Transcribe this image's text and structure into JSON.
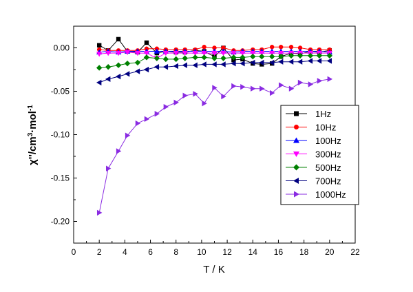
{
  "chart_data": {
    "type": "line",
    "title": "",
    "xlabel": "T / K",
    "ylabel_parts": [
      "χ''/cm",
      "3",
      "·mol",
      "-1"
    ],
    "xlim": [
      0,
      22
    ],
    "ylim": [
      -0.225,
      0.025
    ],
    "xticks": [
      0,
      2,
      4,
      6,
      8,
      10,
      12,
      14,
      16,
      18,
      20,
      22
    ],
    "yticks": [
      0.0,
      -0.05,
      -0.1,
      -0.15,
      -0.2
    ],
    "ytick_labels": [
      "0.00",
      "-0.05",
      "-0.10",
      "-0.15",
      "-0.20"
    ],
    "grid": false,
    "legend_position": "right",
    "x": [
      2.0,
      2.7,
      3.5,
      4.2,
      5.0,
      5.7,
      6.5,
      7.2,
      8.0,
      8.7,
      9.5,
      10.2,
      11.0,
      11.7,
      12.5,
      13.2,
      14.0,
      14.7,
      15.5,
      16.2,
      17.0,
      17.7,
      18.5,
      19.2,
      20.0
    ],
    "series": [
      {
        "name": "1Hz",
        "color": "#000000",
        "marker": "square",
        "values": [
          0.003,
          -0.003,
          0.01,
          -0.004,
          -0.005,
          0.006,
          -0.006,
          -0.004,
          -0.005,
          -0.005,
          -0.003,
          -0.004,
          -0.01,
          0.0,
          -0.014,
          -0.013,
          -0.018,
          -0.019,
          -0.018,
          -0.01,
          -0.006,
          -0.007,
          -0.004,
          -0.005,
          -0.003
        ]
      },
      {
        "name": "10Hz",
        "color": "#ff0000",
        "marker": "circle",
        "values": [
          -0.002,
          -0.003,
          -0.003,
          -0.003,
          -0.003,
          -0.001,
          -0.001,
          -0.002,
          -0.002,
          -0.002,
          -0.002,
          0.001,
          0.0,
          0.0,
          -0.003,
          -0.003,
          -0.002,
          -0.002,
          0.001,
          0.001,
          0.001,
          0.0,
          -0.002,
          -0.002,
          -0.002
        ]
      },
      {
        "name": "100Hz",
        "color": "#0000ff",
        "marker": "triangle-up",
        "values": [
          -0.005,
          -0.004,
          -0.005,
          -0.004,
          -0.004,
          -0.004,
          -0.004,
          -0.004,
          -0.004,
          -0.004,
          -0.004,
          -0.004,
          -0.004,
          -0.004,
          -0.005,
          -0.004,
          -0.004,
          -0.004,
          -0.004,
          -0.004,
          -0.004,
          -0.004,
          -0.004,
          -0.004,
          -0.005
        ]
      },
      {
        "name": "300Hz",
        "color": "#ff00ff",
        "marker": "triangle-down",
        "values": [
          -0.007,
          -0.006,
          -0.006,
          -0.005,
          -0.006,
          -0.006,
          -0.012,
          -0.006,
          -0.006,
          -0.006,
          -0.006,
          -0.006,
          -0.006,
          -0.006,
          -0.006,
          -0.006,
          -0.006,
          -0.006,
          -0.006,
          -0.006,
          -0.006,
          -0.006,
          -0.006,
          -0.006,
          -0.006
        ]
      },
      {
        "name": "500Hz",
        "color": "#008000",
        "marker": "diamond",
        "values": [
          -0.023,
          -0.022,
          -0.02,
          -0.018,
          -0.017,
          -0.011,
          -0.012,
          -0.013,
          -0.013,
          -0.012,
          -0.011,
          -0.011,
          -0.012,
          -0.012,
          -0.011,
          -0.011,
          -0.01,
          -0.01,
          -0.01,
          -0.01,
          -0.009,
          -0.009,
          -0.009,
          -0.009,
          -0.009
        ]
      },
      {
        "name": "700Hz",
        "color": "#000080",
        "marker": "triangle-left",
        "values": [
          -0.04,
          -0.036,
          -0.033,
          -0.03,
          -0.027,
          -0.025,
          -0.022,
          -0.022,
          -0.021,
          -0.02,
          -0.02,
          -0.019,
          -0.019,
          -0.019,
          -0.018,
          -0.018,
          -0.017,
          -0.017,
          -0.017,
          -0.016,
          -0.016,
          -0.016,
          -0.015,
          -0.015,
          -0.015
        ]
      },
      {
        "name": "1000Hz",
        "color": "#8a2be2",
        "marker": "triangle-right",
        "values": [
          -0.19,
          -0.139,
          -0.119,
          -0.101,
          -0.087,
          -0.082,
          -0.076,
          -0.068,
          -0.063,
          -0.055,
          -0.053,
          -0.064,
          -0.046,
          -0.056,
          -0.044,
          -0.045,
          -0.047,
          -0.047,
          -0.052,
          -0.043,
          -0.047,
          -0.04,
          -0.042,
          -0.038,
          -0.036
        ]
      }
    ]
  }
}
